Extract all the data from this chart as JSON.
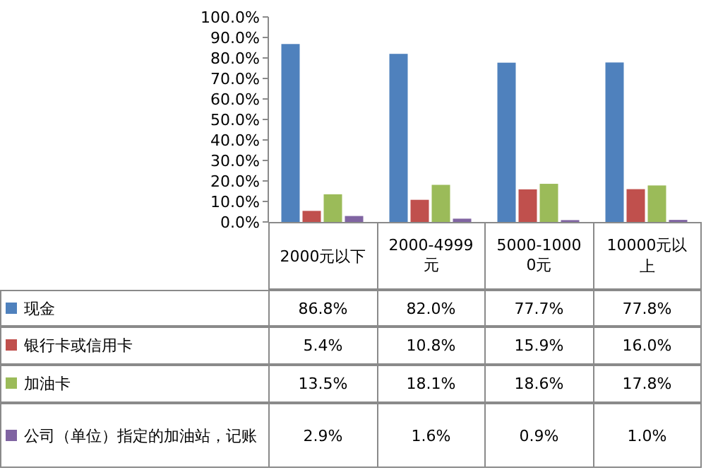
{
  "chart_data": {
    "type": "bar",
    "categories": [
      "2000元以下",
      "2000-4999元",
      "5000-10000元",
      "10000元以上"
    ],
    "series": [
      {
        "name": "现金",
        "color": "#4f81bd",
        "values": [
          86.8,
          82.0,
          77.7,
          77.8
        ],
        "value_labels": [
          "86.8%",
          "82.0%",
          "77.7%",
          "77.8%"
        ]
      },
      {
        "name": "银行卡或信用卡",
        "color": "#c0504d",
        "values": [
          5.4,
          10.8,
          15.9,
          16.0
        ],
        "value_labels": [
          "5.4%",
          "10.8%",
          "15.9%",
          "16.0%"
        ]
      },
      {
        "name": "加油卡",
        "color": "#9bbb59",
        "values": [
          13.5,
          18.1,
          18.6,
          17.8
        ],
        "value_labels": [
          "13.5%",
          "18.1%",
          "18.6%",
          "17.8%"
        ]
      },
      {
        "name": "公司（单位）指定的加油站，记账",
        "color": "#8064a2",
        "values": [
          2.9,
          1.6,
          0.9,
          1.0
        ],
        "value_labels": [
          "2.9%",
          "1.6%",
          "0.9%",
          "1.0%"
        ]
      }
    ],
    "ylim": [
      0,
      100
    ],
    "yticks": [
      {
        "value": 0,
        "label": "0.0%"
      },
      {
        "value": 10,
        "label": "10.0%"
      },
      {
        "value": 20,
        "label": "20.0%"
      },
      {
        "value": 30,
        "label": "30.0%"
      },
      {
        "value": 40,
        "label": "40.0%"
      },
      {
        "value": 50,
        "label": "50.0%"
      },
      {
        "value": 60,
        "label": "60.0%"
      },
      {
        "value": 70,
        "label": "70.0%"
      },
      {
        "value": 80,
        "label": "80.0%"
      },
      {
        "value": 90,
        "label": "90.0%"
      },
      {
        "value": 100,
        "label": "100.0%"
      }
    ],
    "legend": "bottom",
    "grid": false
  }
}
